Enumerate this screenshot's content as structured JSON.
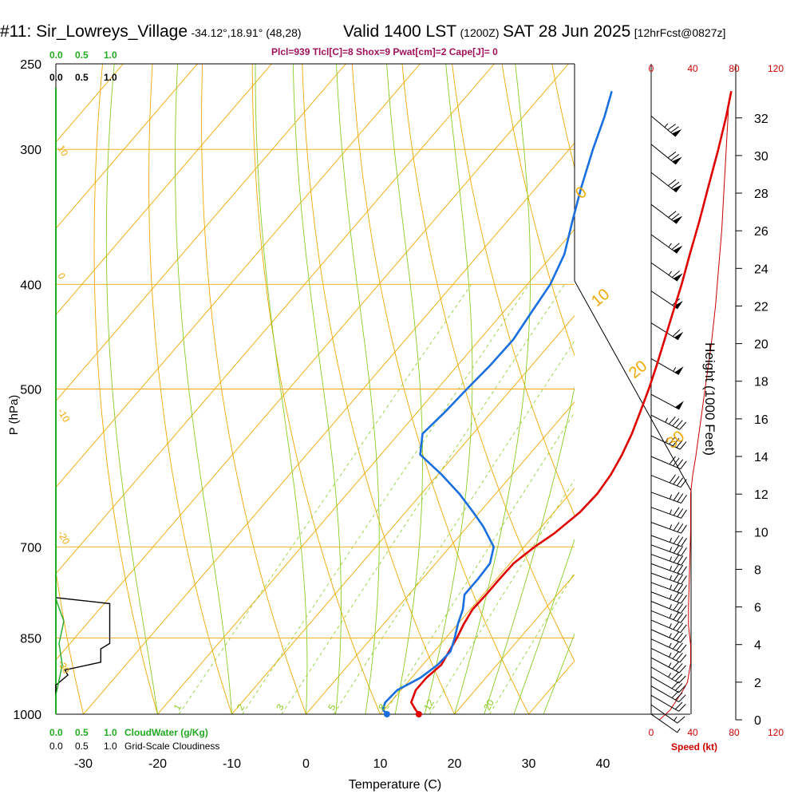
{
  "header": {
    "station": "#11: Sir_Lowreys_Village",
    "location": "-34.12°,18.91° (48,28)",
    "valid": "Valid 1400 LST",
    "utc": "(1200Z)",
    "date": "SAT 28 Jun 2025",
    "forecast": "[12hrFcst@0827z]"
  },
  "params": "Plcl=939 Tlcl[C]=8 Shox=9 Pwat[cm]=2 Cape[J]= 0",
  "colors": {
    "temperature": "#e00000",
    "dewpoint": "#1a6fe0",
    "isotherm": "#f0a800",
    "dry_adiabat": "#f0a800",
    "moist_adiabat": "#88cc22",
    "mixing_ratio": "#88cc22",
    "cloud_water": "#22aa22",
    "wind_speed": "#cc0000",
    "params": "#a0105a"
  },
  "chart_data": {
    "type": "line",
    "subtype": "skew-t log-p sounding",
    "xlabel": "Temperature (C)",
    "ylabel": "P (hPa)",
    "y2label": "Height (1000 Feet)",
    "xlim": [
      -35,
      35
    ],
    "ylim_hpa": [
      1000,
      250
    ],
    "y_scale": "log",
    "x_ticks": [
      "-30",
      "-20",
      "-10",
      "0",
      "10",
      "20",
      "30",
      "40"
    ],
    "pressure_ticks": [
      "250",
      "300",
      "400",
      "500",
      "700",
      "850",
      "1000"
    ],
    "height_ticks": [
      "0",
      "2",
      "4",
      "6",
      "8",
      "10",
      "12",
      "14",
      "16",
      "18",
      "20",
      "22",
      "24",
      "26",
      "28",
      "30",
      "32"
    ],
    "isotherms_deg": [
      -110,
      -100,
      -90,
      -80,
      -70,
      -60,
      -50,
      -40,
      -30,
      -20,
      -10,
      0,
      10,
      20,
      30,
      40
    ],
    "dry_adiabats_labels": [
      "10",
      "0",
      "-10",
      "-20",
      "-30",
      "0",
      "10",
      "20",
      "30"
    ],
    "mixing_ratio_labels": [
      "1",
      "2",
      "3",
      "5",
      "8",
      "12",
      "20"
    ],
    "cloud_scale_labels": [
      "0.0",
      "0.5",
      "1.0"
    ],
    "cloud_water_label": "CloudWater (g/Kg)",
    "cloudiness_label": "Grid-Scale Cloudiness",
    "speed_axis_labels": [
      "0",
      "40",
      "80",
      "120"
    ],
    "speed_label": "Speed (kt)",
    "series": [
      {
        "key": "temperature",
        "points": [
          [
            1000,
            15.2
          ],
          [
            990,
            14.2
          ],
          [
            975,
            12.8
          ],
          [
            950,
            12.0
          ],
          [
            925,
            12.0
          ],
          [
            900,
            12.5
          ],
          [
            875,
            12.0
          ],
          [
            850,
            11.5
          ],
          [
            825,
            10.8
          ],
          [
            800,
            10.3
          ],
          [
            775,
            10.4
          ],
          [
            750,
            10.4
          ],
          [
            725,
            10.5
          ],
          [
            700,
            11.4
          ],
          [
            680,
            12.5
          ],
          [
            650,
            13.5
          ],
          [
            625,
            13.7
          ],
          [
            600,
            13.3
          ],
          [
            575,
            12.5
          ],
          [
            550,
            11.4
          ],
          [
            525,
            10.0
          ],
          [
            500,
            8.5
          ],
          [
            475,
            6.8
          ],
          [
            450,
            4.9
          ],
          [
            425,
            2.9
          ],
          [
            400,
            0.8
          ],
          [
            375,
            -1.6
          ],
          [
            350,
            -4.1
          ],
          [
            325,
            -6.9
          ],
          [
            300,
            -9.9
          ],
          [
            280,
            -12.6
          ],
          [
            265,
            -14.9
          ]
        ]
      },
      {
        "key": "dewpoint",
        "points": [
          [
            1000,
            10.9
          ],
          [
            990,
            9.8
          ],
          [
            975,
            9.3
          ],
          [
            950,
            9.5
          ],
          [
            925,
            11.2
          ],
          [
            900,
            12.0
          ],
          [
            875,
            12.2
          ],
          [
            850,
            11.2
          ],
          [
            825,
            10.0
          ],
          [
            800,
            9.0
          ],
          [
            775,
            7.5
          ],
          [
            750,
            7.5
          ],
          [
            725,
            7.3
          ],
          [
            700,
            5.9
          ],
          [
            670,
            2.1
          ],
          [
            650,
            -0.9
          ],
          [
            625,
            -4.9
          ],
          [
            600,
            -9.5
          ],
          [
            575,
            -14.7
          ],
          [
            550,
            -16.8
          ],
          [
            525,
            -16.3
          ],
          [
            500,
            -16.0
          ],
          [
            475,
            -15.6
          ],
          [
            450,
            -15.5
          ],
          [
            425,
            -16.2
          ],
          [
            400,
            -16.9
          ],
          [
            375,
            -18.5
          ],
          [
            350,
            -21.2
          ],
          [
            325,
            -24.0
          ],
          [
            300,
            -26.8
          ],
          [
            280,
            -29.0
          ],
          [
            265,
            -31.0
          ]
        ]
      }
    ],
    "wind_speed_kt": [
      [
        0,
        8
      ],
      [
        0.5,
        18
      ],
      [
        1,
        24
      ],
      [
        1.5,
        30
      ],
      [
        2,
        35
      ],
      [
        3,
        38
      ],
      [
        4,
        38
      ],
      [
        5,
        36
      ],
      [
        6,
        36
      ],
      [
        8,
        37
      ],
      [
        10,
        38
      ],
      [
        12,
        38
      ],
      [
        13,
        40
      ],
      [
        14,
        43
      ],
      [
        16,
        48
      ],
      [
        18,
        53
      ],
      [
        20,
        58
      ],
      [
        22,
        62
      ],
      [
        24,
        65
      ],
      [
        26,
        68
      ],
      [
        28,
        70
      ],
      [
        30,
        72
      ],
      [
        32,
        74
      ],
      [
        33,
        75
      ]
    ],
    "cloudiness_fraction": [
      [
        960,
        0.0
      ],
      [
        940,
        0.0
      ],
      [
        920,
        0.2
      ],
      [
        910,
        0.15
      ],
      [
        895,
        0.75
      ],
      [
        870,
        0.75
      ],
      [
        860,
        0.9
      ],
      [
        850,
        0.9
      ],
      [
        830,
        0.9
      ],
      [
        810,
        0.9
      ],
      [
        790,
        0.9
      ],
      [
        780,
        0.0
      ]
    ],
    "wind_barbs": [
      {
        "ft": 0.3,
        "dir": 305,
        "kt": 8
      },
      {
        "ft": 0.8,
        "dir": 305,
        "kt": 18
      },
      {
        "ft": 1.3,
        "dir": 300,
        "kt": 24
      },
      {
        "ft": 1.8,
        "dir": 300,
        "kt": 30
      },
      {
        "ft": 2.3,
        "dir": 300,
        "kt": 34
      },
      {
        "ft": 2.8,
        "dir": 300,
        "kt": 36
      },
      {
        "ft": 3.3,
        "dir": 298,
        "kt": 38
      },
      {
        "ft": 3.8,
        "dir": 296,
        "kt": 38
      },
      {
        "ft": 4.3,
        "dir": 295,
        "kt": 38
      },
      {
        "ft": 4.8,
        "dir": 294,
        "kt": 37
      },
      {
        "ft": 5.3,
        "dir": 293,
        "kt": 36
      },
      {
        "ft": 5.8,
        "dir": 292,
        "kt": 36
      },
      {
        "ft": 6.3,
        "dir": 292,
        "kt": 36
      },
      {
        "ft": 6.8,
        "dir": 291,
        "kt": 36
      },
      {
        "ft": 7.3,
        "dir": 290,
        "kt": 37
      },
      {
        "ft": 7.8,
        "dir": 290,
        "kt": 37
      },
      {
        "ft": 8.3,
        "dir": 290,
        "kt": 37
      },
      {
        "ft": 8.8,
        "dir": 290,
        "kt": 38
      },
      {
        "ft": 9.3,
        "dir": 290,
        "kt": 38
      },
      {
        "ft": 9.8,
        "dir": 290,
        "kt": 38
      },
      {
        "ft": 10.5,
        "dir": 290,
        "kt": 38
      },
      {
        "ft": 11.3,
        "dir": 290,
        "kt": 38
      },
      {
        "ft": 12.1,
        "dir": 290,
        "kt": 38
      },
      {
        "ft": 13.0,
        "dir": 292,
        "kt": 40
      },
      {
        "ft": 14.0,
        "dir": 293,
        "kt": 43
      },
      {
        "ft": 15.1,
        "dir": 295,
        "kt": 45
      },
      {
        "ft": 16.2,
        "dir": 297,
        "kt": 48
      },
      {
        "ft": 17.3,
        "dir": 298,
        "kt": 51
      },
      {
        "ft": 19.2,
        "dir": 300,
        "kt": 55
      },
      {
        "ft": 21.1,
        "dir": 302,
        "kt": 60
      },
      {
        "ft": 22.8,
        "dir": 304,
        "kt": 63
      },
      {
        "ft": 24.3,
        "dir": 305,
        "kt": 65
      },
      {
        "ft": 25.8,
        "dir": 306,
        "kt": 68
      },
      {
        "ft": 27.4,
        "dir": 307,
        "kt": 70
      },
      {
        "ft": 29.1,
        "dir": 308,
        "kt": 72
      },
      {
        "ft": 30.6,
        "dir": 309,
        "kt": 73
      },
      {
        "ft": 32.1,
        "dir": 310,
        "kt": 75
      }
    ]
  }
}
